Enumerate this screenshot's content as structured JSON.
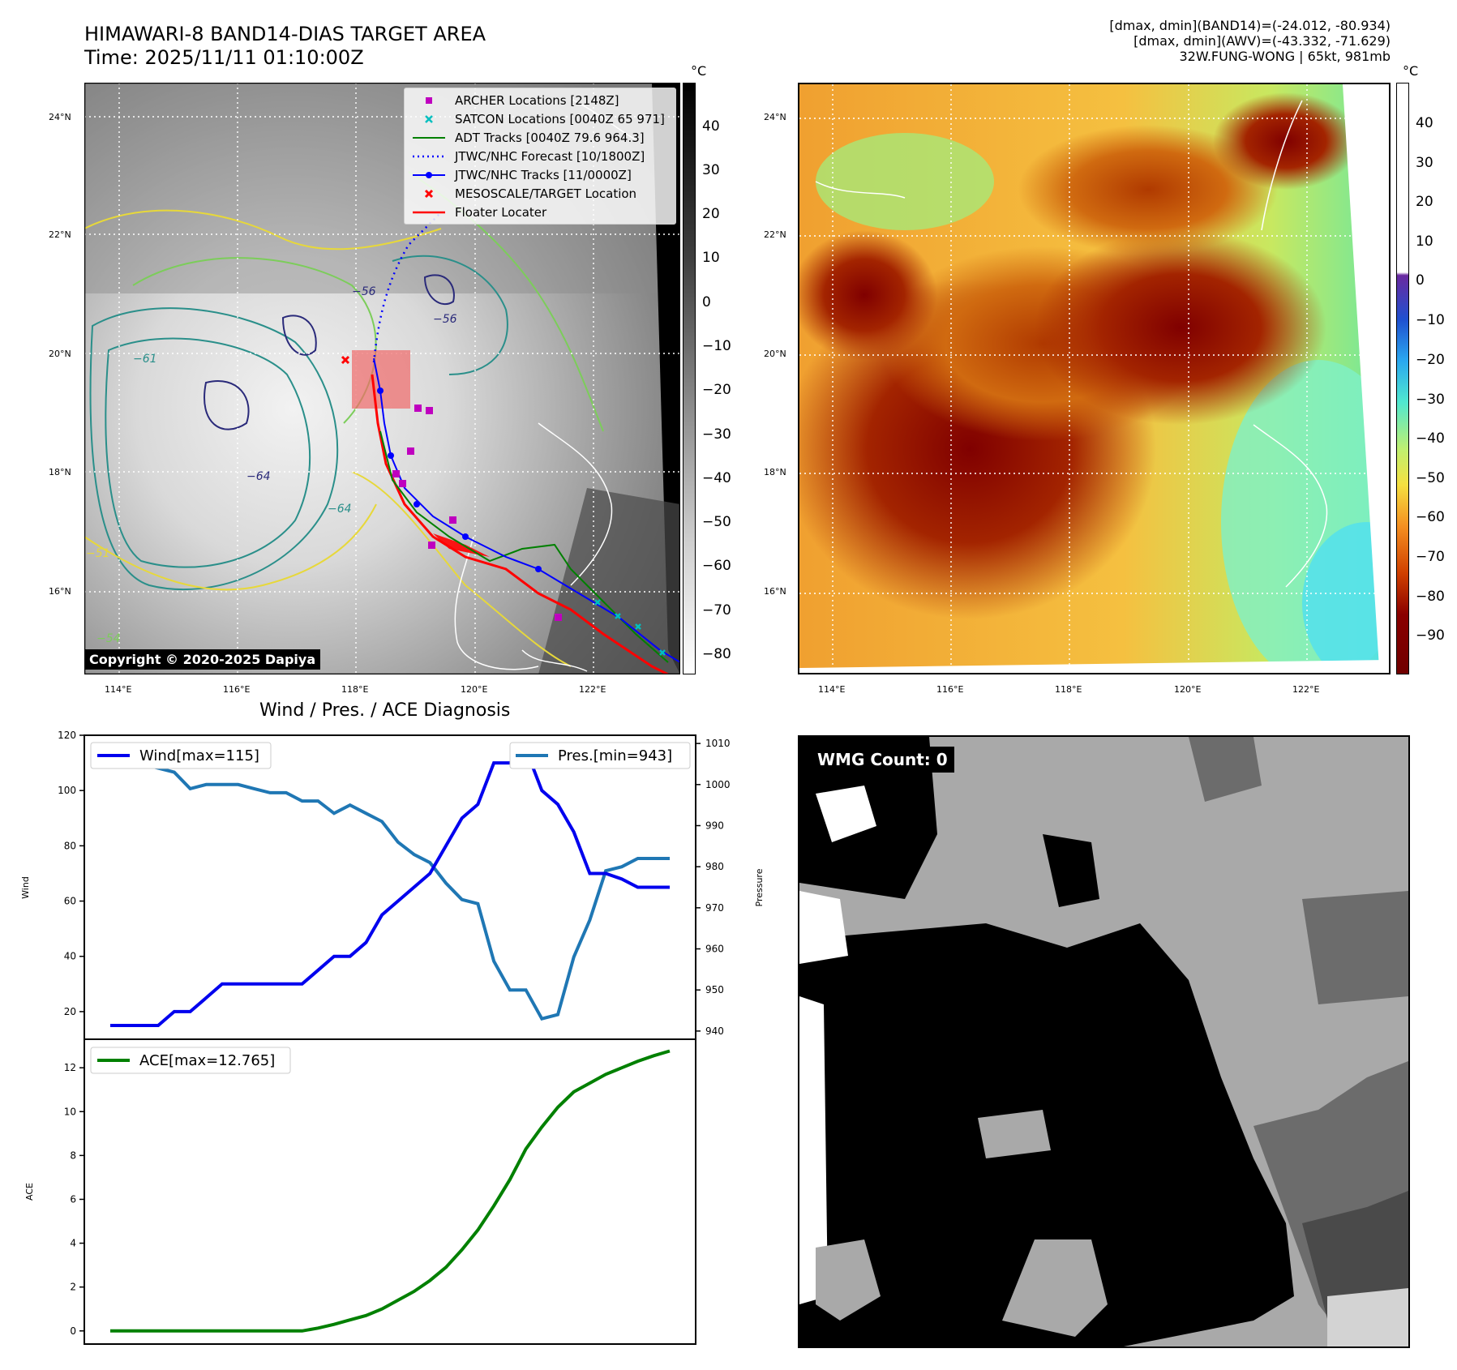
{
  "header": {
    "title_line1": "HIMAWARI-8 BAND14-DIAS TARGET AREA",
    "title_line2": "Time: 2025/11/11 01:10:00Z",
    "info_line1": "[dmax, dmin](BAND14)=(-24.012, -80.934)",
    "info_line2": "[dmax, dmin](AWV)=(-43.332, -71.629)",
    "info_line3": "32W.FUNG-WONG | 65kt, 981mb"
  },
  "map_axes": {
    "lat_labels": [
      "24°N",
      "22°N",
      "20°N",
      "18°N",
      "16°N"
    ],
    "lon_labels": [
      "114°E",
      "116°E",
      "118°E",
      "120°E",
      "122°E"
    ]
  },
  "left_map": {
    "copyright": "Copyright © 2020-2025 Dapiya",
    "colorbar_unit": "°C",
    "colorbar_ticks": [
      "40",
      "30",
      "20",
      "10",
      "0",
      "−10",
      "−20",
      "−30",
      "−40",
      "−50",
      "−60",
      "−70",
      "−80"
    ],
    "contour_labels": [
      "−61",
      "−64",
      "−56",
      "−56",
      "−64",
      "−54",
      "−51"
    ],
    "legend": [
      {
        "label": "ARCHER Locations [2148Z]",
        "icon": "magenta-square",
        "color": "#bf00bf"
      },
      {
        "label": "SATCON Locations [0040Z 65 971]",
        "icon": "cyan-x",
        "color": "#00bfbf"
      },
      {
        "label": "ADT Tracks [0040Z 79.6 964.3]",
        "icon": "green-line",
        "color": "#008000"
      },
      {
        "label": "JTWC/NHC Forecast [10/1800Z]",
        "icon": "blue-dotted-line",
        "color": "#0000ff"
      },
      {
        "label": "JTWC/NHC Tracks [11/0000Z]",
        "icon": "blue-line-dot",
        "color": "#0000ff"
      },
      {
        "label": "MESOSCALE/TARGET Location",
        "icon": "red-x",
        "color": "#ff0000"
      },
      {
        "label": "Floater Locater",
        "icon": "red-line",
        "color": "#ff0000"
      }
    ]
  },
  "right_map": {
    "colorbar_unit": "°C",
    "colorbar_ticks": [
      "40",
      "30",
      "20",
      "10",
      "0",
      "−10",
      "−20",
      "−30",
      "−40",
      "−50",
      "−60",
      "−70",
      "−80",
      "−90"
    ]
  },
  "diagnosis": {
    "title": "Wind / Pres. / ACE Diagnosis",
    "wind_ylabel": "Wind",
    "pressure_ylabel": "Pressure",
    "ace_ylabel": "ACE",
    "wind_ticks": [
      "120",
      "100",
      "80",
      "60",
      "40",
      "20"
    ],
    "pressure_ticks": [
      "1010",
      "1000",
      "990",
      "980",
      "970",
      "960",
      "950",
      "940"
    ],
    "ace_ticks": [
      "12",
      "10",
      "8",
      "6",
      "4",
      "2",
      "0"
    ]
  },
  "wmg": {
    "label": "WMG Count: 0"
  },
  "chart_data": [
    {
      "type": "line",
      "title": "Wind / Pres. / ACE Diagnosis",
      "x": [
        0,
        1,
        2,
        3,
        4,
        5,
        6,
        7,
        8,
        9,
        10,
        11,
        12,
        13,
        14,
        15,
        16,
        17,
        18,
        19,
        20,
        21,
        22,
        23,
        24,
        25,
        26,
        27,
        28,
        29,
        30,
        31,
        32,
        33,
        34,
        35
      ],
      "series": [
        {
          "name": "Wind[max=115]",
          "axis": "left",
          "color": "#0000ee",
          "values": [
            15,
            15,
            15,
            15,
            20,
            20,
            25,
            30,
            30,
            30,
            30,
            30,
            30,
            35,
            40,
            40,
            45,
            55,
            60,
            65,
            70,
            80,
            90,
            95,
            110,
            110,
            115,
            100,
            95,
            85,
            70,
            70,
            68,
            65,
            65,
            65
          ]
        },
        {
          "name": "Pres.[min=943]",
          "axis": "right",
          "color": "#1f77b4",
          "values": [
            1007,
            1005,
            1005,
            1004,
            1003,
            999,
            1000,
            1000,
            1000,
            999,
            998,
            998,
            996,
            996,
            993,
            995,
            993,
            991,
            986,
            983,
            981,
            976,
            972,
            971,
            957,
            950,
            950,
            943,
            944,
            958,
            967,
            979,
            980,
            982,
            982,
            982
          ]
        }
      ],
      "ylabel_left": "Wind",
      "ylim_left": [
        10,
        120
      ],
      "ylabel_right": "Pressure",
      "ylim_right": [
        938,
        1012
      ]
    },
    {
      "type": "line",
      "x": [
        0,
        1,
        2,
        3,
        4,
        5,
        6,
        7,
        8,
        9,
        10,
        11,
        12,
        13,
        14,
        15,
        16,
        17,
        18,
        19,
        20,
        21,
        22,
        23,
        24,
        25,
        26,
        27,
        28,
        29,
        30,
        31,
        32,
        33,
        34,
        35
      ],
      "series": [
        {
          "name": "ACE[max=12.765]",
          "color": "#008000",
          "values": [
            0,
            0,
            0,
            0,
            0,
            0,
            0,
            0,
            0,
            0,
            0,
            0,
            0,
            0.13,
            0.3,
            0.5,
            0.7,
            1.0,
            1.4,
            1.8,
            2.3,
            2.9,
            3.7,
            4.6,
            5.7,
            6.9,
            8.3,
            9.3,
            10.2,
            10.9,
            11.3,
            11.7,
            12.0,
            12.3,
            12.55,
            12.765
          ]
        }
      ],
      "ylabel": "ACE",
      "ylim": [
        -0.6,
        13.3
      ]
    }
  ]
}
